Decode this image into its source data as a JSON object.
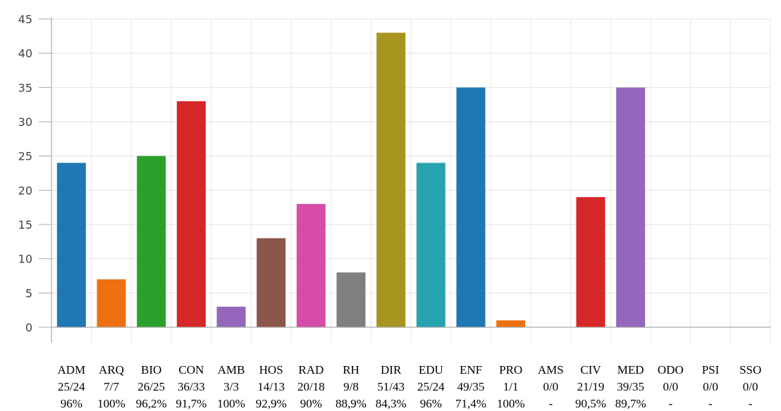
{
  "chart_data": {
    "type": "bar",
    "categories": [
      {
        "code": "ADM",
        "ratio": "25/24",
        "pct": "96%",
        "value": 24,
        "color": "#1f77b4"
      },
      {
        "code": "ARQ",
        "ratio": "7/7",
        "pct": "100%",
        "value": 7,
        "color": "#ee7010"
      },
      {
        "code": "BIO",
        "ratio": "26/25",
        "pct": "96,2%",
        "value": 25,
        "color": "#2ca02c"
      },
      {
        "code": "CON",
        "ratio": "36/33",
        "pct": "91,7%",
        "value": 33,
        "color": "#d62728"
      },
      {
        "code": "AMB",
        "ratio": "3/3",
        "pct": "100%",
        "value": 3,
        "color": "#9467bd"
      },
      {
        "code": "HOS",
        "ratio": "14/13",
        "pct": "92,9%",
        "value": 13,
        "color": "#8c564b"
      },
      {
        "code": "RAD",
        "ratio": "20/18",
        "pct": "90%",
        "value": 18,
        "color": "#d64ca8"
      },
      {
        "code": "RH",
        "ratio": "9/8",
        "pct": "88,9%",
        "value": 8,
        "color": "#7f7f7f"
      },
      {
        "code": "DIR",
        "ratio": "51/43",
        "pct": "84,3%",
        "value": 43,
        "color": "#a79520"
      },
      {
        "code": "EDU",
        "ratio": "25/24",
        "pct": "96%",
        "value": 24,
        "color": "#27a3b0"
      },
      {
        "code": "ENF",
        "ratio": "49/35",
        "pct": "71,4%",
        "value": 35,
        "color": "#1f77b4"
      },
      {
        "code": "PRO",
        "ratio": "1/1",
        "pct": "100%",
        "value": 1,
        "color": "#ee7010"
      },
      {
        "code": "AMS",
        "ratio": "0/0",
        "pct": "-",
        "value": 0,
        "color": "#2ca02c"
      },
      {
        "code": "CIV",
        "ratio": "21/19",
        "pct": "90,5%",
        "value": 19,
        "color": "#d62728"
      },
      {
        "code": "MED",
        "ratio": "39/35",
        "pct": "89,7%",
        "value": 35,
        "color": "#9467bd"
      },
      {
        "code": "ODO",
        "ratio": "0/0",
        "pct": "-",
        "value": 0,
        "color": "#8c564b"
      },
      {
        "code": "PSI",
        "ratio": "0/0",
        "pct": "-",
        "value": 0,
        "color": "#d64ca8"
      },
      {
        "code": "SSO",
        "ratio": "0/0",
        "pct": "-",
        "value": 0,
        "color": "#7f7f7f"
      }
    ],
    "ylim": [
      0,
      45
    ],
    "yticks": [
      0,
      5,
      10,
      15,
      20,
      25,
      30,
      35,
      40,
      45
    ],
    "grid": true,
    "title": "",
    "xlabel": "",
    "ylabel": ""
  }
}
